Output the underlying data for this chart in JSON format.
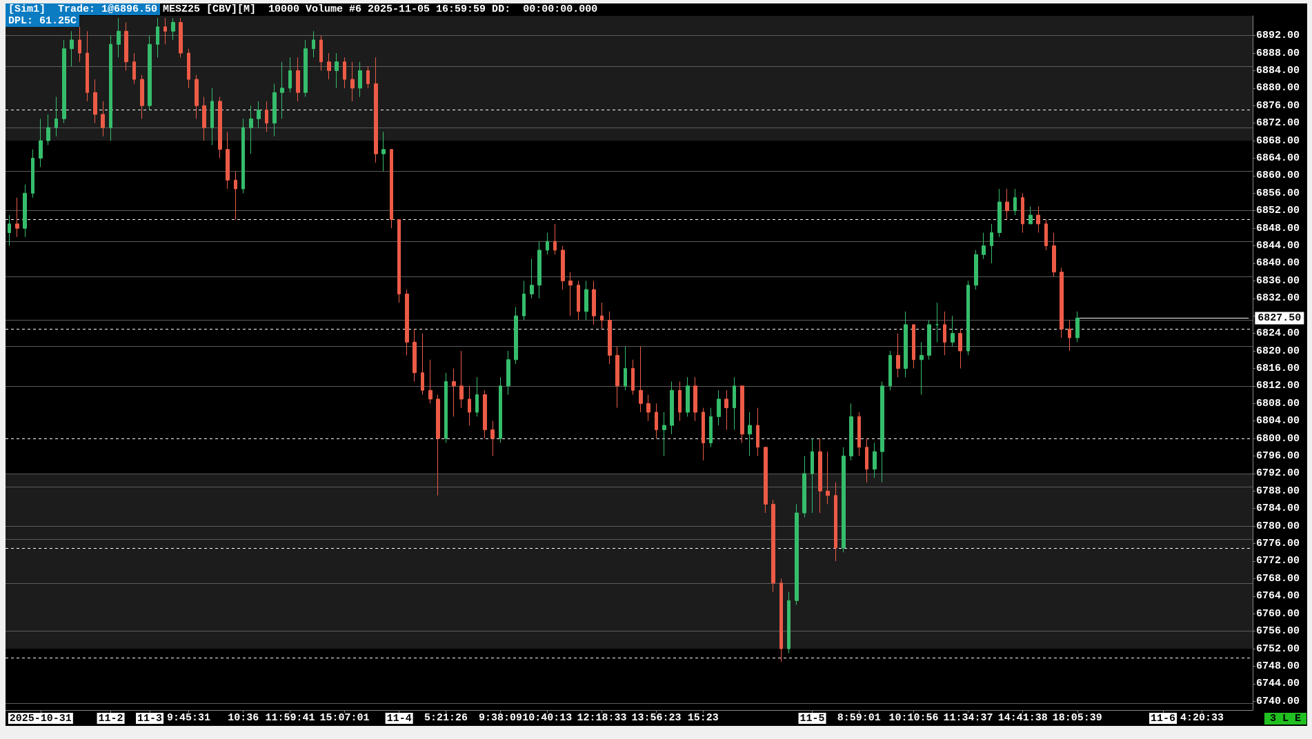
{
  "chart_data": {
    "type": "candlestick",
    "title": "MESZ25 [CBV][M]  10000 Volume #6 2025-11-05 16:59:59 DD:  00:00:00.000",
    "annotations": [
      "[Sim1]  Trade: 1@6896.50",
      "DPL: 61.25C",
      "3 L E"
    ],
    "categories": [
      null,
      null,
      null,
      null,
      "2025-10-31",
      null,
      null,
      null,
      null,
      null,
      null,
      null,
      null,
      "11-2",
      null,
      null,
      null,
      null,
      "11-3",
      null,
      null,
      null,
      null,
      "9:45:31",
      null,
      null,
      null,
      null,
      null,
      null,
      "10:36",
      null,
      null,
      null,
      null,
      null,
      "11:59:41",
      null,
      null,
      null,
      null,
      null,
      null,
      "15:07:01",
      null,
      null,
      null,
      null,
      null,
      null,
      "11-4",
      null,
      null,
      null,
      null,
      null,
      "5:21:26",
      null,
      null,
      null,
      null,
      null,
      null,
      "9:38:09",
      null,
      null,
      null,
      null,
      null,
      "10:40:13",
      null,
      null,
      null,
      null,
      null,
      null,
      "12:18:33",
      null,
      null,
      null,
      null,
      null,
      null,
      "13:56:23",
      null,
      null,
      null,
      null,
      null,
      "15:23",
      null,
      null,
      null,
      null,
      null,
      null,
      null,
      null,
      null,
      null,
      null,
      null,
      null,
      "11-5",
      null,
      null,
      null,
      null,
      null,
      "8:59:01",
      null,
      null,
      null,
      null,
      null,
      null,
      "10:10:56",
      null,
      null,
      null,
      null,
      null,
      null,
      "11:34:37",
      null,
      null,
      null,
      null,
      null,
      null,
      "14:41:38",
      null,
      null,
      null,
      null,
      null,
      null,
      "18:05:39",
      null,
      null,
      null,
      null,
      null,
      null,
      null,
      null,
      null,
      null,
      "11-6",
      null,
      null,
      null,
      null,
      "4:20:33",
      null,
      null,
      null,
      null,
      null,
      null
    ],
    "ohlc": [
      [
        6847,
        6851,
        6844,
        6849
      ],
      [
        6849,
        6855,
        6846,
        6848
      ],
      [
        6848,
        6858,
        6846,
        6856
      ],
      [
        6856,
        6866,
        6855,
        6864
      ],
      [
        6864,
        6873,
        6862,
        6868
      ],
      [
        6868,
        6874,
        6867,
        6871
      ],
      [
        6871,
        6878,
        6869,
        6873
      ],
      [
        6873,
        6891,
        6872,
        6889
      ],
      [
        6889,
        6893,
        6885,
        6891
      ],
      [
        6891,
        6894,
        6886,
        6888
      ],
      [
        6888,
        6893,
        6877,
        6879
      ],
      [
        6879,
        6882,
        6872,
        6874
      ],
      [
        6874,
        6877,
        6869,
        6871
      ],
      [
        6871,
        6892,
        6868,
        6890
      ],
      [
        6890,
        6896,
        6887,
        6893
      ],
      [
        6893,
        6895,
        6884,
        6886
      ],
      [
        6886,
        6888,
        6881,
        6882
      ],
      [
        6882,
        6883,
        6873,
        6876
      ],
      [
        6876,
        6892,
        6875,
        6890
      ],
      [
        6890,
        6896,
        6887,
        6894
      ],
      [
        6894,
        6896,
        6890,
        6893
      ],
      [
        6893,
        6896,
        6891,
        6895
      ],
      [
        6895,
        6896,
        6887,
        6888
      ],
      [
        6888,
        6889,
        6880,
        6882
      ],
      [
        6882,
        6883,
        6873,
        6876
      ],
      [
        6876,
        6878,
        6868,
        6871
      ],
      [
        6871,
        6880,
        6867,
        6877
      ],
      [
        6877,
        6878,
        6864,
        6866
      ],
      [
        6866,
        6870,
        6857,
        6859
      ],
      [
        6859,
        6861,
        6850,
        6857
      ],
      [
        6857,
        6873,
        6856,
        6871
      ],
      [
        6871,
        6876,
        6865,
        6873
      ],
      [
        6873,
        6877,
        6871,
        6875
      ],
      [
        6875,
        6877,
        6870,
        6872
      ],
      [
        6872,
        6881,
        6869,
        6879
      ],
      [
        6879,
        6886,
        6873,
        6880
      ],
      [
        6880,
        6887,
        6879,
        6884
      ],
      [
        6884,
        6887,
        6877,
        6879
      ],
      [
        6879,
        6891,
        6878,
        6889
      ],
      [
        6889,
        6893,
        6887,
        6891
      ],
      [
        6891,
        6892,
        6884,
        6886
      ],
      [
        6886,
        6888,
        6882,
        6884
      ],
      [
        6884,
        6888,
        6880,
        6886
      ],
      [
        6886,
        6887,
        6880,
        6882
      ],
      [
        6882,
        6886,
        6877,
        6880
      ],
      [
        6880,
        6886,
        6878,
        6884
      ],
      [
        6884,
        6885,
        6880,
        6881
      ],
      [
        6881,
        6887,
        6863,
        6865
      ],
      [
        6865,
        6870,
        6861,
        6866
      ],
      [
        6866,
        6866,
        6848,
        6850
      ],
      [
        6850,
        6850,
        6831,
        6833
      ],
      [
        6833,
        6834,
        6819,
        6822
      ],
      [
        6822,
        6825,
        6813,
        6815
      ],
      [
        6815,
        6824,
        6810,
        6811
      ],
      [
        6811,
        6818,
        6808,
        6809
      ],
      [
        6809,
        6810,
        6787,
        6800
      ],
      [
        6800,
        6815,
        6799,
        6813
      ],
      [
        6813,
        6816,
        6805,
        6812
      ],
      [
        6812,
        6820,
        6807,
        6809
      ],
      [
        6809,
        6812,
        6803,
        6806
      ],
      [
        6806,
        6814,
        6805,
        6810
      ],
      [
        6810,
        6811,
        6800,
        6802
      ],
      [
        6802,
        6804,
        6796,
        6800
      ],
      [
        6800,
        6814,
        6799,
        6812
      ],
      [
        6812,
        6820,
        6810,
        6818
      ],
      [
        6818,
        6830,
        6817,
        6828
      ],
      [
        6828,
        6836,
        6827,
        6833
      ],
      [
        6833,
        6841,
        6832,
        6835
      ],
      [
        6835,
        6845,
        6832,
        6843
      ],
      [
        6843,
        6847,
        6842,
        6845
      ],
      [
        6845,
        6849,
        6842,
        6843
      ],
      [
        6843,
        6844,
        6834,
        6836
      ],
      [
        6836,
        6838,
        6828,
        6835
      ],
      [
        6835,
        6836,
        6827,
        6829
      ],
      [
        6829,
        6836,
        6827,
        6834
      ],
      [
        6834,
        6836,
        6826,
        6828
      ],
      [
        6828,
        6831,
        6825,
        6827
      ],
      [
        6827,
        6829,
        6817,
        6819
      ],
      [
        6819,
        6821,
        6807,
        6812
      ],
      [
        6812,
        6821,
        6811,
        6816
      ],
      [
        6816,
        6818,
        6810,
        6811
      ],
      [
        6811,
        6821,
        6806,
        6808
      ],
      [
        6808,
        6810,
        6804,
        6806
      ],
      [
        6806,
        6808,
        6800,
        6802
      ],
      [
        6802,
        6806,
        6796,
        6803
      ],
      [
        6803,
        6813,
        6801,
        6811
      ],
      [
        6811,
        6813,
        6804,
        6806
      ],
      [
        6806,
        6814,
        6805,
        6812
      ],
      [
        6812,
        6814,
        6804,
        6806
      ],
      [
        6806,
        6807,
        6795,
        6799
      ],
      [
        6799,
        6807,
        6798,
        6805
      ],
      [
        6805,
        6811,
        6803,
        6809
      ],
      [
        6809,
        6811,
        6802,
        6807
      ],
      [
        6807,
        6814,
        6802,
        6812
      ],
      [
        6812,
        6812,
        6799,
        6801
      ],
      [
        6801,
        6806,
        6796,
        6803
      ],
      [
        6803,
        6807,
        6796,
        6798
      ],
      [
        6798,
        6798,
        6783,
        6785
      ],
      [
        6785,
        6786,
        6765,
        6767
      ],
      [
        6767,
        6768,
        6749,
        6752
      ],
      [
        6752,
        6765,
        6751,
        6763
      ],
      [
        6763,
        6785,
        6762,
        6783
      ],
      [
        6783,
        6796,
        6782,
        6792
      ],
      [
        6792,
        6800,
        6783,
        6797
      ],
      [
        6797,
        6800,
        6783,
        6788
      ],
      [
        6788,
        6797,
        6785,
        6787
      ],
      [
        6787,
        6790,
        6772,
        6775
      ],
      [
        6775,
        6798,
        6774,
        6796
      ],
      [
        6796,
        6808,
        6795,
        6805
      ],
      [
        6805,
        6806,
        6796,
        6798
      ],
      [
        6798,
        6800,
        6790,
        6793
      ],
      [
        6793,
        6799,
        6791,
        6797
      ],
      [
        6797,
        6813,
        6790,
        6812
      ],
      [
        6812,
        6820,
        6811,
        6819
      ],
      [
        6819,
        6824,
        6814,
        6816
      ],
      [
        6816,
        6829,
        6814,
        6826
      ],
      [
        6826,
        6826,
        6816,
        6818
      ],
      [
        6818,
        6822,
        6810,
        6819
      ],
      [
        6819,
        6827,
        6818,
        6826
      ],
      [
        6826,
        6831,
        6822,
        6826
      ],
      [
        6826,
        6829,
        6819,
        6822
      ],
      [
        6822,
        6828,
        6821,
        6824
      ],
      [
        6824,
        6825,
        6816,
        6820
      ],
      [
        6820,
        6836,
        6819,
        6835
      ],
      [
        6835,
        6843,
        6834,
        6842
      ],
      [
        6842,
        6847,
        6841,
        6844
      ],
      [
        6844,
        6849,
        6840,
        6847
      ],
      [
        6847,
        6857,
        6846,
        6854
      ],
      [
        6854,
        6857,
        6850,
        6852
      ],
      [
        6852,
        6857,
        6851,
        6855
      ],
      [
        6855,
        6856,
        6847,
        6849
      ],
      [
        6849,
        6853,
        6849,
        6851
      ],
      [
        6851,
        6853,
        6847,
        6849
      ],
      [
        6849,
        6850,
        6843,
        6844
      ],
      [
        6844,
        6847,
        6837,
        6838
      ],
      [
        6838,
        6839,
        6823,
        6825
      ],
      [
        6825,
        6827,
        6820,
        6823
      ],
      [
        6823,
        6829,
        6822,
        6827.5
      ],
      null,
      null,
      null,
      null,
      null,
      null,
      null,
      null,
      null,
      null,
      null,
      null,
      null,
      null,
      null,
      null,
      null,
      null,
      null,
      null,
      null,
      null
    ],
    "colors": [
      "#36bd6c",
      "#ec5b46",
      "#36bd6c",
      "#36bd6c",
      "#36bd6c",
      "#36bd6c",
      "#36bd6c",
      "#36bd6c",
      "#36bd6c",
      "#ec5b46",
      "#ec5b46",
      "#ec5b46",
      "#ec5b46",
      "#36bd6c",
      "#36bd6c",
      "#ec5b46",
      "#ec5b46",
      "#ec5b46",
      "#36bd6c",
      "#36bd6c",
      "#ec5b46",
      "#36bd6c",
      "#ec5b46",
      "#ec5b46",
      "#ec5b46",
      "#ec5b46",
      "#36bd6c",
      "#ec5b46",
      "#ec5b46",
      "#ec5b46",
      "#36bd6c",
      "#36bd6c",
      "#36bd6c",
      "#ec5b46",
      "#36bd6c",
      "#36bd6c",
      "#36bd6c",
      "#ec5b46",
      "#36bd6c",
      "#36bd6c",
      "#ec5b46",
      "#ec5b46",
      "#36bd6c",
      "#ec5b46",
      "#ec5b46",
      "#36bd6c",
      "#ec5b46",
      "#ec5b46",
      "#36bd6c",
      "#ec5b46",
      "#ec5b46",
      "#ec5b46",
      "#ec5b46",
      "#ec5b46",
      "#ec5b46",
      "#ec5b46",
      "#36bd6c",
      "#ec5b46",
      "#ec5b46",
      "#ec5b46",
      "#36bd6c",
      "#ec5b46",
      "#ec5b46",
      "#36bd6c",
      "#36bd6c",
      "#36bd6c",
      "#36bd6c",
      "#36bd6c",
      "#36bd6c",
      "#36bd6c",
      "#ec5b46",
      "#ec5b46",
      "#ec5b46",
      "#ec5b46",
      "#36bd6c",
      "#ec5b46",
      "#ec5b46",
      "#ec5b46",
      "#ec5b46",
      "#36bd6c",
      "#ec5b46",
      "#ec5b46",
      "#ec5b46",
      "#ec5b46",
      "#36bd6c",
      "#36bd6c",
      "#ec5b46",
      "#36bd6c",
      "#ec5b46",
      "#ec5b46",
      "#36bd6c",
      "#36bd6c",
      "#ec5b46",
      "#36bd6c",
      "#ec5b46",
      "#36bd6c",
      "#ec5b46",
      "#ec5b46",
      "#ec5b46",
      "#ec5b46",
      "#36bd6c",
      "#36bd6c",
      "#36bd6c",
      "#36bd6c",
      "#ec5b46",
      "#ec5b46",
      "#ec5b46",
      "#36bd6c",
      "#36bd6c",
      "#ec5b46",
      "#ec5b46",
      "#36bd6c",
      "#36bd6c",
      "#36bd6c",
      "#ec5b46",
      "#36bd6c",
      "#ec5b46",
      "#36bd6c",
      "#36bd6c",
      "#36bd6c",
      "#ec5b46",
      "#36bd6c",
      "#ec5b46",
      "#36bd6c",
      "#36bd6c",
      "#36bd6c",
      "#36bd6c",
      "#36bd6c",
      "#ec5b46",
      "#36bd6c",
      "#ec5b46",
      "#36bd6c",
      "#ec5b46",
      "#ec5b46",
      "#ec5b46",
      "#ec5b46",
      "#ec5b46",
      "#36bd6c",
      null,
      null,
      null,
      null,
      null,
      null,
      null,
      null,
      null,
      null,
      null,
      null,
      null,
      null,
      null,
      null,
      null,
      null,
      null,
      null,
      null,
      null
    ],
    "ylim": [
      6738,
      6896.5
    ],
    "yticks": [
      {
        "value": 6740,
        "label": "6740.00"
      },
      {
        "value": 6744,
        "label": "6744.00"
      },
      {
        "value": 6748,
        "label": "6748.00"
      },
      {
        "value": 6752,
        "label": "6752.00"
      },
      {
        "value": 6756,
        "label": "6756.00"
      },
      {
        "value": 6760,
        "label": "6760.00"
      },
      {
        "value": 6764,
        "label": "6764.00"
      },
      {
        "value": 6768,
        "label": "6768.00"
      },
      {
        "value": 6772,
        "label": "6772.00"
      },
      {
        "value": 6776,
        "label": "6776.00"
      },
      {
        "value": 6780,
        "label": "6780.00"
      },
      {
        "value": 6784,
        "label": "6784.00"
      },
      {
        "value": 6788,
        "label": "6788.00"
      },
      {
        "value": 6792,
        "label": "6792.00"
      },
      {
        "value": 6796,
        "label": "6796.00"
      },
      {
        "value": 6800,
        "label": "6800.00"
      },
      {
        "value": 6804,
        "label": "6804.00"
      },
      {
        "value": 6808,
        "label": "6808.00"
      },
      {
        "value": 6812,
        "label": "6812.00"
      },
      {
        "value": 6816,
        "label": "6816.00"
      },
      {
        "value": 6820,
        "label": "6820.00"
      },
      {
        "value": 6824,
        "label": "6824.00"
      },
      {
        "value": 6828,
        "label": null
      },
      {
        "value": 6832,
        "label": "6832.00"
      },
      {
        "value": 6836,
        "label": "6836.00"
      },
      {
        "value": 6840,
        "label": "6840.00"
      },
      {
        "value": 6844,
        "label": "6844.00"
      },
      {
        "value": 6848,
        "label": "6848.00"
      },
      {
        "value": 6852,
        "label": "6852.00"
      },
      {
        "value": 6856,
        "label": "6856.00"
      },
      {
        "value": 6860,
        "label": "6860.00"
      },
      {
        "value": 6864,
        "label": "6864.00"
      },
      {
        "value": 6868,
        "label": "6868.00"
      },
      {
        "value": 6872,
        "label": "6872.00"
      },
      {
        "value": 6876,
        "label": "6876.00"
      },
      {
        "value": 6880,
        "label": "6880.00"
      },
      {
        "value": 6884,
        "label": "6884.00"
      },
      {
        "value": 6888,
        "label": "6888.00"
      },
      {
        "value": 6892,
        "label": "6892.00"
      }
    ],
    "ref_lines": [
      {
        "axis": "y",
        "value": 6827.5,
        "label": "6827.50",
        "color": "#ffffff",
        "line_style": "solid"
      },
      {
        "axis": "y",
        "value": 6875,
        "color": "#ffffff",
        "line_style": "dashed"
      },
      {
        "axis": "y",
        "value": 6850,
        "color": "#ffffff",
        "line_style": "dashed"
      },
      {
        "axis": "y",
        "value": 6825,
        "color": "#ffffff",
        "line_style": "dashed"
      },
      {
        "axis": "y",
        "value": 6800,
        "color": "#ffffff",
        "line_style": "dashed"
      },
      {
        "axis": "y",
        "value": 6775,
        "color": "#ffffff",
        "line_style": "dashed"
      },
      {
        "axis": "y",
        "value": 6750,
        "color": "#ffffff",
        "line_style": "dashed"
      },
      {
        "axis": "y",
        "value": 6892,
        "color": "#5c5c5c",
        "line_style": "solid"
      },
      {
        "axis": "y",
        "value": 6885,
        "color": "#5c5c5c",
        "line_style": "solid"
      },
      {
        "axis": "y",
        "value": 6871,
        "color": "#5c5c5c",
        "line_style": "solid"
      },
      {
        "axis": "y",
        "value": 6861,
        "color": "#5c5c5c",
        "line_style": "solid"
      },
      {
        "axis": "y",
        "value": 6852,
        "color": "#5c5c5c",
        "line_style": "solid"
      },
      {
        "axis": "y",
        "value": 6845,
        "color": "#5c5c5c",
        "line_style": "solid"
      },
      {
        "axis": "y",
        "value": 6837,
        "color": "#5c5c5c",
        "line_style": "solid"
      },
      {
        "axis": "y",
        "value": 6827,
        "color": "#5c5c5c",
        "line_style": "solid"
      },
      {
        "axis": "y",
        "value": 6821,
        "color": "#5c5c5c",
        "line_style": "solid"
      },
      {
        "axis": "y",
        "value": 6812,
        "color": "#5c5c5c",
        "line_style": "solid"
      },
      {
        "axis": "y",
        "value": 6792,
        "color": "#5c5c5c",
        "line_style": "solid"
      },
      {
        "axis": "y",
        "value": 6789,
        "color": "#5c5c5c",
        "line_style": "solid"
      },
      {
        "axis": "y",
        "value": 6780,
        "color": "#5c5c5c",
        "line_style": "solid"
      },
      {
        "axis": "y",
        "value": 6777,
        "color": "#5c5c5c",
        "line_style": "solid"
      },
      {
        "axis": "y",
        "value": 6767,
        "color": "#5c5c5c",
        "line_style": "solid"
      },
      {
        "axis": "y",
        "value": 6756,
        "color": "#5c5c5c",
        "line_style": "solid"
      },
      {
        "axis": "y",
        "value": 6739.5,
        "color": "#5c5c5c",
        "line_style": "solid"
      }
    ],
    "bands": [
      {
        "axis": "y",
        "from": 6868,
        "to": 6896.5,
        "color": "#1c1c1c"
      },
      {
        "axis": "y",
        "from": 6752,
        "to": 6792,
        "color": "#1c1c1c"
      }
    ]
  }
}
